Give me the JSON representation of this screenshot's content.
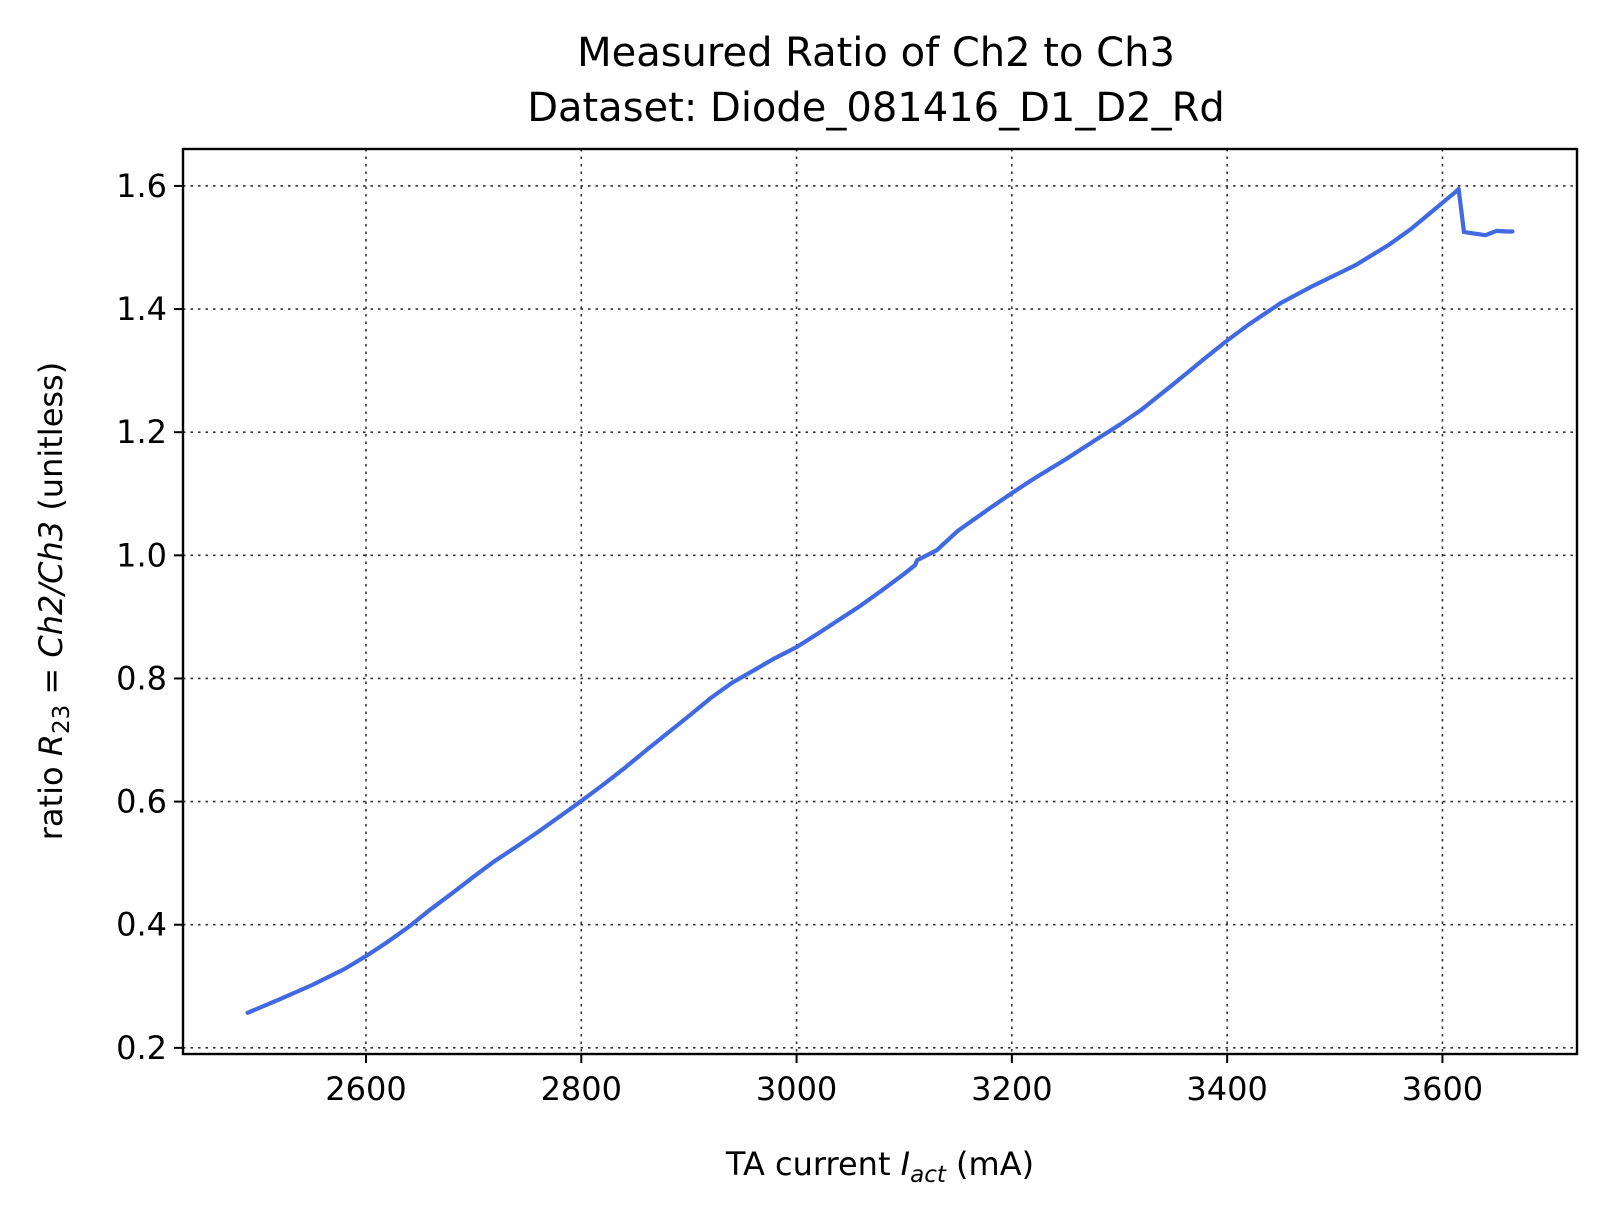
{
  "chart_data": {
    "type": "line",
    "title": "Measured Ratio of Ch2 to Ch3",
    "subtitle": "Dataset: Diode_081416_D1_D2_Rd",
    "xlabel": {
      "prefix": "TA current ",
      "symbol": "I",
      "subscript": "act",
      "suffix": " (mA)"
    },
    "ylabel": {
      "prefix": "ratio ",
      "symbol": "R",
      "subscript": "23",
      "equals": " = ",
      "expression": "Ch2/Ch3",
      "suffix": " (unitless)"
    },
    "xlim": [
      2430,
      3725
    ],
    "ylim": [
      0.19,
      1.66
    ],
    "xticks": [
      "2600",
      "2800",
      "3000",
      "3200",
      "3400",
      "3600"
    ],
    "yticks": [
      "0.2",
      "0.4",
      "0.6",
      "0.8",
      "1.0",
      "1.2",
      "1.4",
      "1.6"
    ],
    "grid": true,
    "grid_style": "dotted",
    "series": [
      {
        "color": "#4169e1",
        "x": [
          2490,
          2520,
          2550,
          2580,
          2600,
          2620,
          2640,
          2660,
          2680,
          2700,
          2720,
          2740,
          2760,
          2780,
          2800,
          2820,
          2840,
          2860,
          2880,
          2900,
          2920,
          2940,
          2960,
          2980,
          3000,
          3020,
          3040,
          3060,
          3080,
          3100,
          3110,
          3112,
          3120,
          3130,
          3150,
          3180,
          3200,
          3220,
          3250,
          3280,
          3300,
          3320,
          3350,
          3380,
          3400,
          3420,
          3450,
          3480,
          3500,
          3520,
          3550,
          3570,
          3590,
          3605,
          3612,
          3615,
          3620,
          3640,
          3650,
          3660,
          3665
        ],
        "y": [
          0.257,
          0.279,
          0.302,
          0.328,
          0.349,
          0.372,
          0.397,
          0.425,
          0.451,
          0.478,
          0.504,
          0.527,
          0.551,
          0.576,
          0.601,
          0.627,
          0.654,
          0.683,
          0.711,
          0.739,
          0.768,
          0.793,
          0.813,
          0.833,
          0.851,
          0.873,
          0.896,
          0.919,
          0.944,
          0.97,
          0.984,
          0.992,
          0.999,
          1.008,
          1.04,
          1.077,
          1.101,
          1.124,
          1.156,
          1.19,
          1.212,
          1.236,
          1.278,
          1.321,
          1.349,
          1.375,
          1.41,
          1.438,
          1.455,
          1.472,
          1.504,
          1.529,
          1.558,
          1.58,
          1.59,
          1.595,
          1.525,
          1.52,
          1.527,
          1.526,
          1.526
        ]
      }
    ]
  }
}
